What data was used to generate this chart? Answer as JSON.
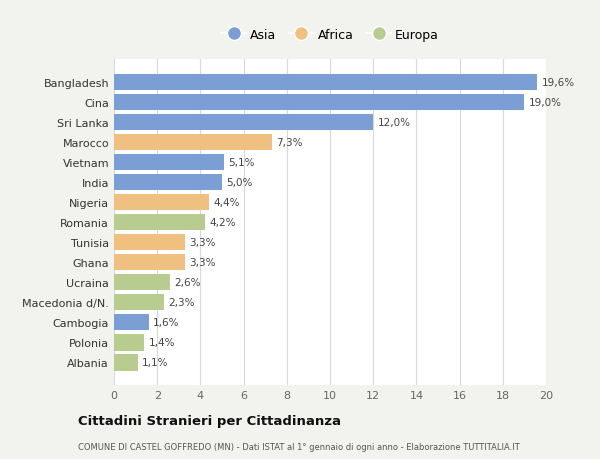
{
  "categories": [
    "Bangladesh",
    "Cina",
    "Sri Lanka",
    "Marocco",
    "Vietnam",
    "India",
    "Nigeria",
    "Romania",
    "Tunisia",
    "Ghana",
    "Ucraina",
    "Macedonia d/N.",
    "Cambogia",
    "Polonia",
    "Albania"
  ],
  "values": [
    19.6,
    19.0,
    12.0,
    7.3,
    5.1,
    5.0,
    4.4,
    4.2,
    3.3,
    3.3,
    2.6,
    2.3,
    1.6,
    1.4,
    1.1
  ],
  "labels": [
    "19,6%",
    "19,0%",
    "12,0%",
    "7,3%",
    "5,1%",
    "5,0%",
    "4,4%",
    "4,2%",
    "3,3%",
    "3,3%",
    "2,6%",
    "2,3%",
    "1,6%",
    "1,4%",
    "1,1%"
  ],
  "colors": [
    "#7b9fd4",
    "#7b9fd4",
    "#7b9fd4",
    "#f0c080",
    "#7b9fd4",
    "#7b9fd4",
    "#f0c080",
    "#b8cc90",
    "#f0c080",
    "#f0c080",
    "#b8cc90",
    "#b8cc90",
    "#7b9fd4",
    "#b8cc90",
    "#b8cc90"
  ],
  "legend_labels": [
    "Asia",
    "Africa",
    "Europa"
  ],
  "legend_colors": [
    "#7b9fd4",
    "#f0c080",
    "#b8cc90"
  ],
  "title": "Cittadini Stranieri per Cittadinanza",
  "subtitle": "COMUNE DI CASTEL GOFFREDO (MN) - Dati ISTAT al 1° gennaio di ogni anno - Elaborazione TUTTITALIA.IT",
  "xlim": [
    0,
    20
  ],
  "xticks": [
    0,
    2,
    4,
    6,
    8,
    10,
    12,
    14,
    16,
    18,
    20
  ],
  "background_color": "#f2f2ee",
  "bar_background": "#ffffff",
  "grid_color": "#d8d8d8"
}
